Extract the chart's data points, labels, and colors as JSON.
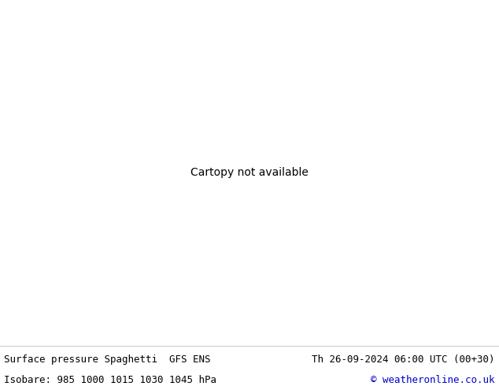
{
  "title_left": "Surface pressure Spaghetti  GFS ENS",
  "title_right": "Th 26-09-2024 06:00 UTC (00+30)",
  "subtitle_left": "Isobare: 985 1000 1015 1030 1045 hPa",
  "subtitle_right": "© weatheronline.co.uk",
  "bg_color": "#ffffff",
  "ocean_color": "#e8e8e8",
  "land_color": "#c8f0a0",
  "border_color": "#aaaaaa",
  "title_fontsize": 9.0,
  "subtitle_fontsize": 9.0,
  "copyright_color": "#0000cc",
  "line_colors": [
    "#ff0000",
    "#00bb00",
    "#0000ff",
    "#ff00ff",
    "#00aaaa",
    "#ff8800",
    "#888800",
    "#008888",
    "#cc0044",
    "#4400cc",
    "#884400",
    "#004488",
    "#880088",
    "#008800",
    "#440088",
    "#cc4400",
    "#0044cc",
    "#44cc00",
    "#cc0088",
    "#8800cc"
  ],
  "isobars": [
    985,
    1000,
    1015,
    1030,
    1045
  ],
  "n_members": 51,
  "seed": 12345,
  "lon_min": -170,
  "lon_max": -30,
  "lat_min": 15,
  "lat_max": 80,
  "label_fontsize": 5
}
